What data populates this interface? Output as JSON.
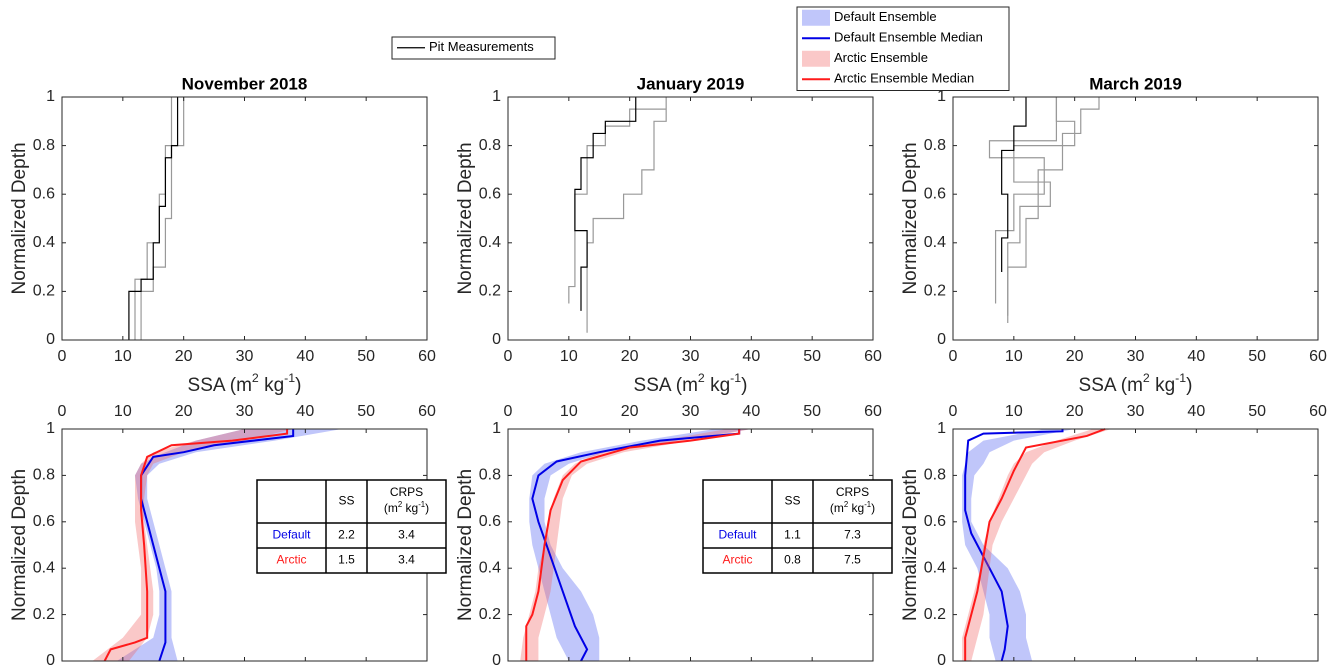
{
  "chart_data": [
    {
      "type": "line",
      "title": "November 2018",
      "xlabel": [
        "SSA (m",
        "2",
        " kg",
        "-1",
        ")"
      ],
      "ylabel": "Normalized Depth",
      "xlim": [
        0,
        60
      ],
      "xticks": [
        0,
        10,
        20,
        30,
        40,
        50,
        60
      ],
      "ylim": [
        0,
        1
      ],
      "yticks": [
        0,
        0.2,
        0.4,
        0.6,
        0.8,
        1
      ],
      "xaxis_position": "bottom",
      "series": [
        {
          "kind": "line",
          "color": "#999999",
          "ssa": [
            13,
            13,
            15,
            15,
            17,
            17,
            18,
            18,
            20,
            20
          ],
          "depth": [
            0,
            0.2,
            0.2,
            0.3,
            0.3,
            0.5,
            0.5,
            0.8,
            0.8,
            1
          ]
        },
        {
          "kind": "line",
          "color": "#999999",
          "ssa": [
            12,
            12,
            14,
            14,
            16,
            16,
            17,
            17,
            18,
            18
          ],
          "depth": [
            0,
            0.25,
            0.25,
            0.4,
            0.4,
            0.6,
            0.6,
            0.8,
            0.8,
            1
          ]
        },
        {
          "kind": "line",
          "name": "Pit Measurements",
          "color": "#000000",
          "ssa": [
            11,
            11,
            13,
            13,
            15,
            15,
            16,
            16,
            17,
            17,
            18,
            18,
            19,
            19
          ],
          "depth": [
            0,
            0.2,
            0.2,
            0.25,
            0.25,
            0.4,
            0.4,
            0.55,
            0.55,
            0.75,
            0.75,
            0.8,
            0.8,
            1
          ]
        }
      ]
    },
    {
      "type": "line",
      "title": "January 2019",
      "xlabel": [
        "SSA (m",
        "2",
        " kg",
        "-1",
        ")"
      ],
      "ylabel": "Normalized Depth",
      "xlim": [
        0,
        60
      ],
      "xticks": [
        0,
        10,
        20,
        30,
        40,
        50,
        60
      ],
      "ylim": [
        0,
        1
      ],
      "yticks": [
        0,
        0.2,
        0.4,
        0.6,
        0.8,
        1
      ],
      "xaxis_position": "bottom",
      "series": [
        {
          "kind": "line",
          "color": "#999999",
          "ssa": [
            13,
            13,
            14,
            14,
            19,
            19,
            22,
            22,
            24,
            24,
            26,
            26
          ],
          "depth": [
            0.03,
            0.4,
            0.4,
            0.5,
            0.5,
            0.6,
            0.6,
            0.7,
            0.7,
            0.9,
            0.9,
            1
          ]
        },
        {
          "kind": "line",
          "color": "#999999",
          "ssa": [
            10,
            10,
            11,
            11,
            13,
            13,
            16,
            16,
            20,
            20,
            26
          ],
          "depth": [
            0.15,
            0.22,
            0.22,
            0.6,
            0.6,
            0.8,
            0.8,
            0.88,
            0.88,
            0.95,
            0.95
          ]
        },
        {
          "kind": "line",
          "color": "#000000",
          "ssa": [
            12,
            12,
            13,
            13,
            11,
            11,
            12,
            12,
            14,
            14,
            16,
            16,
            21,
            21
          ],
          "depth": [
            0.12,
            0.3,
            0.3,
            0.45,
            0.45,
            0.62,
            0.62,
            0.75,
            0.75,
            0.85,
            0.85,
            0.9,
            0.9,
            1
          ]
        }
      ]
    },
    {
      "type": "line",
      "title": "March 2019",
      "xlabel": [
        "SSA (m",
        "2",
        " kg",
        "-1",
        ")"
      ],
      "ylabel": "Normalized Depth",
      "xlim": [
        0,
        60
      ],
      "xticks": [
        0,
        10,
        20,
        30,
        40,
        50,
        60
      ],
      "ylim": [
        0,
        1
      ],
      "yticks": [
        0,
        0.2,
        0.4,
        0.6,
        0.8,
        1
      ],
      "xaxis_position": "bottom",
      "series": [
        {
          "kind": "line",
          "color": "#999999",
          "ssa": [
            9,
            9,
            12,
            12,
            14,
            14,
            18,
            18,
            21,
            21,
            24,
            24
          ],
          "depth": [
            0.07,
            0.3,
            0.3,
            0.5,
            0.5,
            0.7,
            0.7,
            0.85,
            0.85,
            0.95,
            0.95,
            1
          ]
        },
        {
          "kind": "line",
          "color": "#999999",
          "ssa": [
            7,
            7,
            10,
            10,
            15,
            15,
            6,
            6,
            17,
            17
          ],
          "depth": [
            0.15,
            0.45,
            0.45,
            0.6,
            0.6,
            0.75,
            0.75,
            0.82,
            0.82,
            1
          ]
        },
        {
          "kind": "line",
          "color": "#999999",
          "ssa": [
            9,
            9,
            11,
            11,
            16,
            16,
            10,
            10,
            20,
            20,
            17,
            17
          ],
          "depth": [
            0.1,
            0.4,
            0.4,
            0.55,
            0.55,
            0.65,
            0.65,
            0.8,
            0.8,
            0.9,
            0.9,
            1
          ]
        },
        {
          "kind": "line",
          "color": "#000000",
          "ssa": [
            8,
            8,
            9,
            9,
            8,
            8,
            10,
            10,
            12,
            12
          ],
          "depth": [
            0.28,
            0.42,
            0.42,
            0.6,
            0.6,
            0.78,
            0.78,
            0.88,
            0.88,
            1
          ]
        }
      ]
    },
    {
      "type": "line",
      "ylabel": "Normalized Depth",
      "xlim": [
        0,
        60
      ],
      "xticks": [
        0,
        10,
        20,
        30,
        40,
        50,
        60
      ],
      "ylim": [
        0,
        1
      ],
      "yticks": [
        0,
        0.2,
        0.4,
        0.6,
        0.8,
        1
      ],
      "xaxis_position": "top",
      "series": [
        {
          "kind": "band",
          "color": "#4b5cf0",
          "depth": [
            0,
            0.1,
            0.2,
            0.3,
            0.4,
            0.5,
            0.6,
            0.7,
            0.8,
            0.85,
            0.9,
            0.95,
            1
          ],
          "ssa_low": [
            9,
            15,
            16,
            16,
            15.5,
            14.5,
            13.5,
            12.5,
            12,
            13,
            17,
            22,
            30
          ],
          "ssa_high": [
            19,
            18,
            18,
            18,
            17,
            16,
            15,
            14,
            14,
            16,
            22,
            35,
            46
          ]
        },
        {
          "kind": "band",
          "color": "#f06060",
          "depth": [
            0,
            0.1,
            0.2,
            0.3,
            0.4,
            0.5,
            0.6,
            0.7,
            0.8,
            0.85,
            0.9,
            0.95,
            1
          ],
          "ssa_low": [
            5,
            10,
            13,
            13,
            13,
            12.5,
            12,
            12,
            12,
            13,
            15,
            22,
            30
          ],
          "ssa_high": [
            11,
            14,
            15,
            15,
            14.5,
            14,
            13.5,
            13.5,
            14,
            15,
            20,
            30,
            38
          ]
        },
        {
          "kind": "line",
          "color": "#0000e6",
          "ssa": [
            16,
            17,
            17,
            15,
            13,
            13,
            15,
            20,
            25,
            38,
            38
          ],
          "depth": [
            0,
            0.08,
            0.3,
            0.5,
            0.7,
            0.8,
            0.88,
            0.9,
            0.93,
            0.97,
            1
          ]
        },
        {
          "kind": "line",
          "color": "#ff1a1a",
          "ssa": [
            7,
            8,
            12,
            14,
            14,
            13.5,
            13,
            13,
            14,
            18,
            28,
            37,
            37
          ],
          "depth": [
            0,
            0.05,
            0.08,
            0.1,
            0.3,
            0.5,
            0.65,
            0.8,
            0.88,
            0.93,
            0.95,
            0.98,
            1
          ]
        }
      ],
      "table": {
        "columns": [
          "SS",
          "CRPS"
        ],
        "unit": [
          "(m",
          "2",
          " kg",
          "-1",
          ")"
        ],
        "rows": [
          {
            "label": "Default",
            "color": "#0000e6",
            "values": [
              2.2,
              3.4
            ]
          },
          {
            "label": "Arctic",
            "color": "#ff1a1a",
            "values": [
              1.5,
              3.4
            ]
          }
        ]
      }
    },
    {
      "type": "line",
      "ylabel": "Normalized Depth",
      "xlim": [
        0,
        60
      ],
      "xticks": [
        0,
        10,
        20,
        30,
        40,
        50,
        60
      ],
      "ylim": [
        0,
        1
      ],
      "yticks": [
        0,
        0.2,
        0.4,
        0.6,
        0.8,
        1
      ],
      "xaxis_position": "top",
      "series": [
        {
          "kind": "band",
          "color": "#4b5cf0",
          "depth": [
            0,
            0.1,
            0.2,
            0.3,
            0.4,
            0.5,
            0.6,
            0.7,
            0.8,
            0.85,
            0.9,
            0.95,
            1
          ],
          "ssa_low": [
            10,
            8,
            7,
            6,
            5,
            4,
            3.5,
            3.5,
            4,
            6,
            12,
            22,
            34
          ],
          "ssa_high": [
            15,
            15,
            14,
            12,
            9,
            7,
            6,
            6,
            7,
            10,
            16,
            28,
            40
          ]
        },
        {
          "kind": "band",
          "color": "#f06060",
          "depth": [
            0,
            0.1,
            0.2,
            0.3,
            0.4,
            0.5,
            0.6,
            0.7,
            0.8,
            0.85,
            0.9,
            0.95,
            1
          ],
          "ssa_low": [
            2,
            2.5,
            3.5,
            4.5,
            5,
            6,
            6.5,
            7.5,
            9,
            11,
            15,
            25,
            36
          ],
          "ssa_high": [
            5,
            5,
            6,
            7,
            7.5,
            8,
            8.5,
            9,
            10.5,
            13,
            19,
            30,
            40
          ]
        },
        {
          "kind": "line",
          "color": "#0000e6",
          "ssa": [
            12,
            13,
            11,
            9,
            7,
            5,
            4,
            5,
            8,
            15,
            25,
            38,
            38
          ],
          "depth": [
            0,
            0.05,
            0.15,
            0.3,
            0.45,
            0.6,
            0.7,
            0.8,
            0.86,
            0.9,
            0.95,
            0.98,
            1
          ]
        },
        {
          "kind": "line",
          "color": "#ff1a1a",
          "ssa": [
            3,
            3,
            4,
            5,
            6,
            7,
            9,
            12,
            20,
            30,
            38,
            38
          ],
          "depth": [
            0,
            0.15,
            0.2,
            0.3,
            0.5,
            0.65,
            0.78,
            0.86,
            0.92,
            0.95,
            0.98,
            1
          ]
        }
      ],
      "table": {
        "columns": [
          "SS",
          "CRPS"
        ],
        "unit": [
          "(m",
          "2",
          " kg",
          "-1",
          ")"
        ],
        "rows": [
          {
            "label": "Default",
            "color": "#0000e6",
            "values": [
              1.1,
              7.3
            ]
          },
          {
            "label": "Arctic",
            "color": "#ff1a1a",
            "values": [
              0.8,
              7.5
            ]
          }
        ]
      }
    },
    {
      "type": "line",
      "ylabel": "Normalized Depth",
      "xlim": [
        0,
        60
      ],
      "xticks": [
        0,
        10,
        20,
        30,
        40,
        50,
        60
      ],
      "ylim": [
        0,
        1
      ],
      "yticks": [
        0,
        0.2,
        0.4,
        0.6,
        0.8,
        1
      ],
      "xaxis_position": "top",
      "series": [
        {
          "kind": "band",
          "name": "Default Ensemble",
          "color": "#4b5cf0",
          "depth": [
            0,
            0.1,
            0.2,
            0.3,
            0.4,
            0.5,
            0.6,
            0.7,
            0.8,
            0.85,
            0.9,
            0.95,
            1
          ],
          "ssa_low": [
            7,
            6,
            6,
            5,
            4,
            2,
            1.5,
            1.5,
            1.5,
            2,
            2.5,
            5,
            15
          ],
          "ssa_high": [
            13,
            12,
            12,
            11,
            9,
            5,
            3,
            3,
            3.5,
            5,
            6,
            10,
            20
          ]
        },
        {
          "kind": "line",
          "name": "Default Ensemble Median",
          "color": "#0000e6",
          "ssa": [
            8,
            8.5,
            9,
            8,
            6,
            3,
            2,
            2,
            2.5,
            5,
            18,
            18
          ],
          "depth": [
            0,
            0.05,
            0.15,
            0.3,
            0.4,
            0.55,
            0.65,
            0.8,
            0.95,
            0.98,
            0.99,
            1
          ]
        },
        {
          "kind": "band",
          "name": "Arctic Ensemble",
          "color": "#f06060",
          "depth": [
            0,
            0.1,
            0.2,
            0.3,
            0.4,
            0.5,
            0.6,
            0.7,
            0.8,
            0.85,
            0.9,
            0.95,
            1
          ],
          "ssa_low": [
            1.5,
            1.5,
            2.5,
            3.5,
            4.5,
            5,
            6,
            7.5,
            9,
            10,
            12,
            17,
            23
          ],
          "ssa_high": [
            3,
            4,
            5,
            5.5,
            6,
            6.5,
            8,
            10,
            12,
            13,
            15,
            20,
            26
          ]
        },
        {
          "kind": "line",
          "name": "Arctic Ensemble Median",
          "color": "#ff1a1a",
          "ssa": [
            2,
            2,
            3,
            4,
            5,
            6,
            8,
            10,
            12,
            22,
            25
          ],
          "depth": [
            0,
            0.1,
            0.2,
            0.3,
            0.45,
            0.6,
            0.7,
            0.82,
            0.92,
            0.97,
            1
          ]
        }
      ]
    }
  ]
}
